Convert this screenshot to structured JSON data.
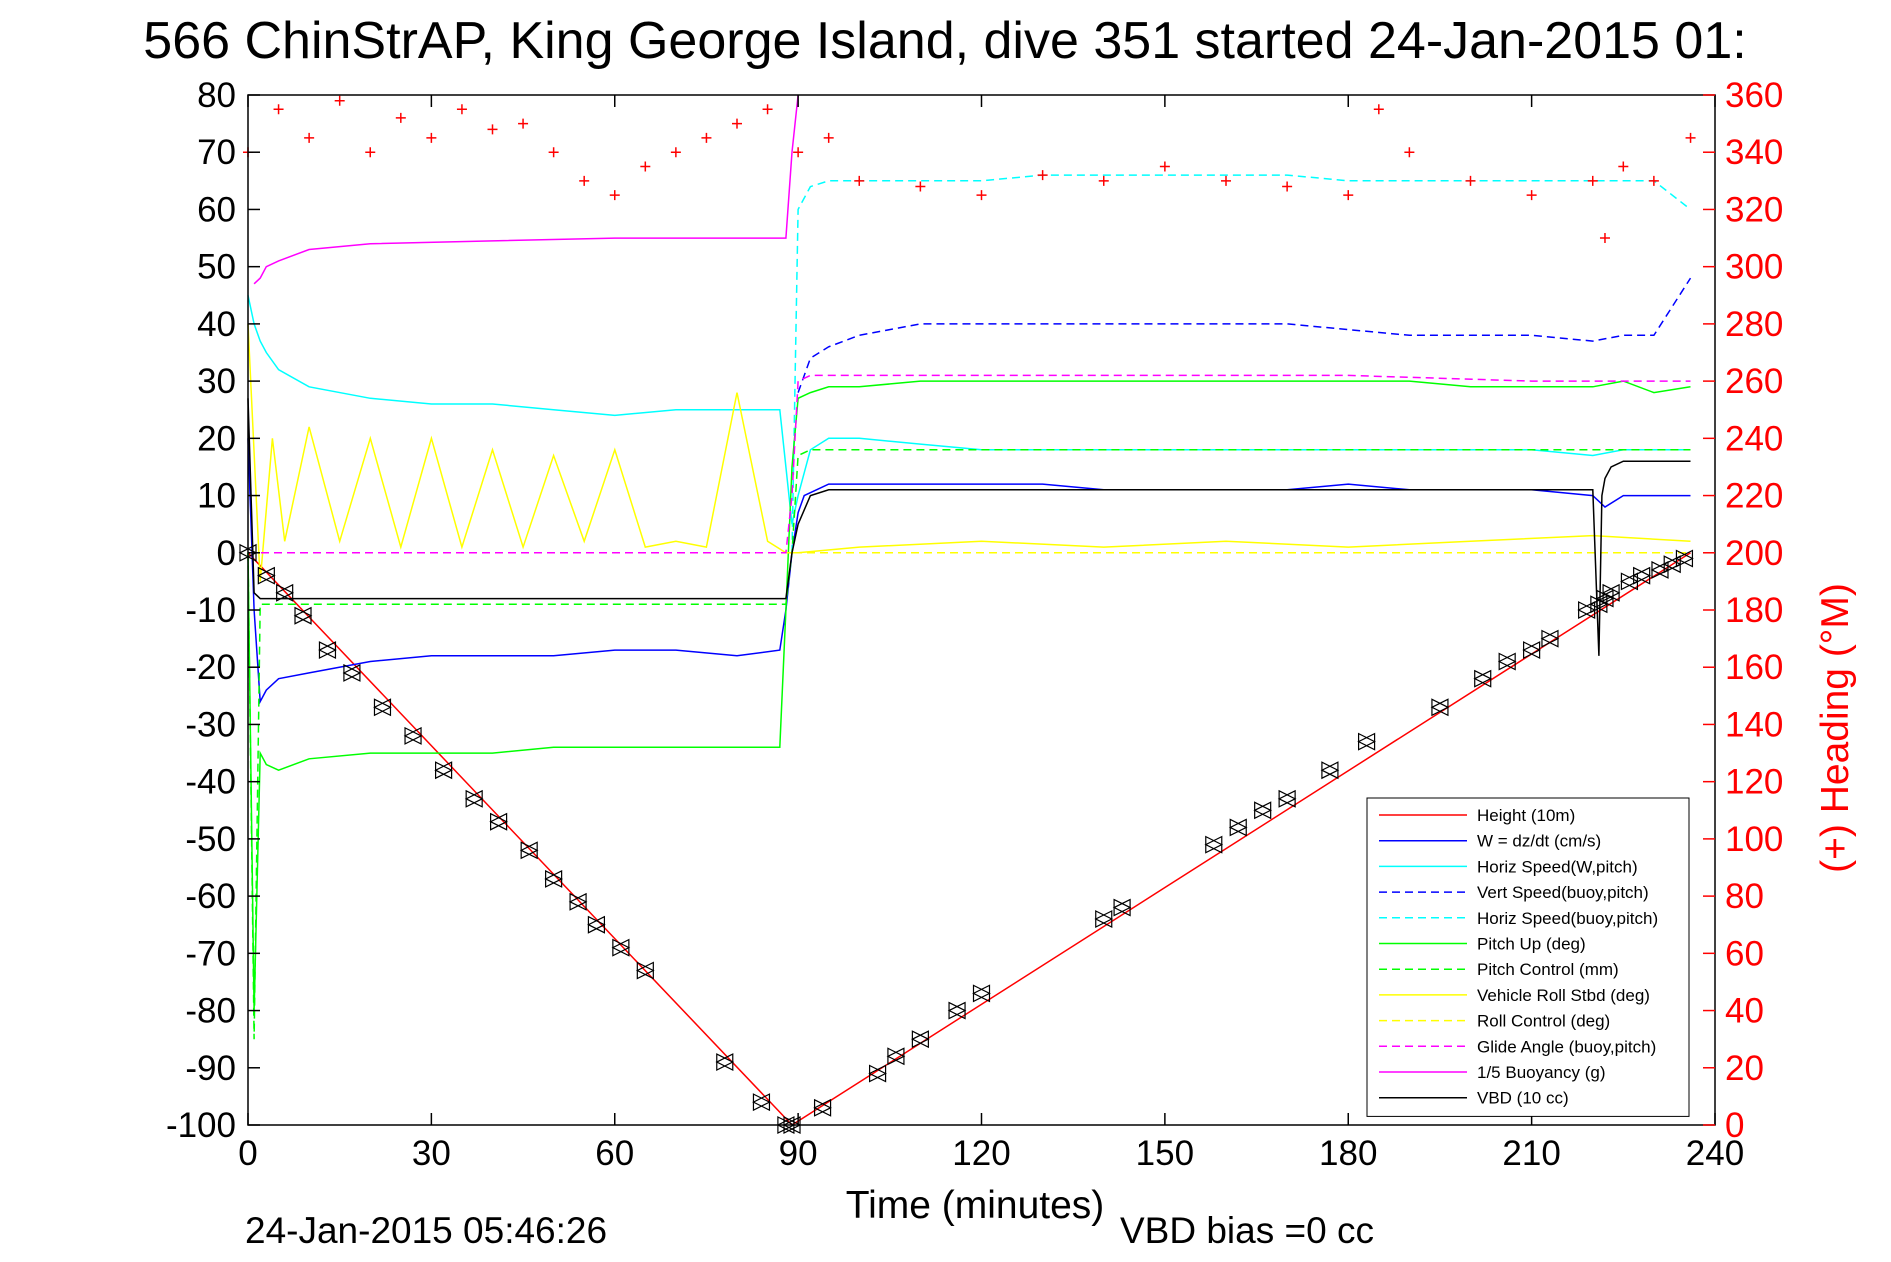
{
  "chart_data": {
    "type": "line",
    "title": "566 ChinStrAP, King George Island, dive 351 started 24-Jan-2015 01:",
    "xlabel": "Time (minutes)",
    "ylabel_right": "(+) Heading (°M)",
    "xlim": [
      0,
      240
    ],
    "ylim_left": [
      -100,
      80
    ],
    "ylim_right": [
      0,
      360
    ],
    "x_ticks": [
      "0",
      "30",
      "60",
      "90",
      "120",
      "150",
      "180",
      "210",
      "240"
    ],
    "y_ticks_left": [
      "80",
      "70",
      "60",
      "50",
      "40",
      "30",
      "20",
      "10",
      "0",
      "-10",
      "-20",
      "-30",
      "-40",
      "-50",
      "-60",
      "-70",
      "-80",
      "-90",
      "-100"
    ],
    "y_ticks_right": [
      "360",
      "340",
      "320",
      "300",
      "280",
      "260",
      "240",
      "220",
      "200",
      "180",
      "160",
      "140",
      "120",
      "100",
      "80",
      "60",
      "40",
      "20",
      "0"
    ],
    "grid": false,
    "legend_position": "bottom-right",
    "footer_left": "24-Jan-2015 05:46:26",
    "footer_right": "VBD bias =0 cc",
    "series": [
      {
        "name": "Height (10m)",
        "color": "#ff0000",
        "style": "solid",
        "x": [
          0,
          89,
          236
        ],
        "y": [
          0,
          -100,
          0
        ]
      },
      {
        "name": "W = dz/dt (cm/s)",
        "color": "#0000ff",
        "style": "solid",
        "x": [
          0,
          1,
          2,
          3,
          5,
          10,
          20,
          30,
          40,
          50,
          60,
          70,
          80,
          87,
          88,
          89,
          90,
          91,
          93,
          95,
          100,
          110,
          120,
          130,
          140,
          150,
          160,
          170,
          180,
          190,
          200,
          210,
          220,
          222,
          225,
          230,
          236
        ],
        "y": [
          20,
          -10,
          -26,
          -24,
          -22,
          -21,
          -19,
          -18,
          -18,
          -18,
          -17,
          -17,
          -18,
          -17,
          -10,
          0,
          7,
          10,
          11,
          12,
          12,
          12,
          12,
          12,
          11,
          11,
          11,
          11,
          12,
          11,
          11,
          11,
          10,
          8,
          10,
          10,
          10
        ]
      },
      {
        "name": "Horiz Speed(W,pitch)",
        "color": "#00ffff",
        "style": "solid",
        "x": [
          0,
          1,
          2,
          3,
          5,
          10,
          20,
          30,
          40,
          50,
          60,
          70,
          80,
          87,
          88,
          89,
          90,
          92,
          95,
          100,
          110,
          120,
          130,
          140,
          150,
          160,
          170,
          180,
          190,
          200,
          210,
          220,
          225,
          230,
          236
        ],
        "y": [
          45,
          40,
          37,
          35,
          32,
          29,
          27,
          26,
          26,
          25,
          24,
          25,
          25,
          25,
          15,
          5,
          10,
          18,
          20,
          20,
          19,
          18,
          18,
          18,
          18,
          18,
          18,
          18,
          18,
          18,
          18,
          17,
          18,
          18,
          18
        ]
      },
      {
        "name": "Vert Speed(buoy,pitch)",
        "color": "#0000ff",
        "style": "dashed",
        "x": [
          90,
          92,
          95,
          100,
          110,
          120,
          130,
          140,
          150,
          160,
          170,
          180,
          190,
          200,
          210,
          220,
          225,
          230,
          236
        ],
        "y": [
          28,
          34,
          36,
          38,
          40,
          40,
          40,
          40,
          40,
          40,
          40,
          39,
          38,
          38,
          38,
          37,
          38,
          38,
          48
        ]
      },
      {
        "name": "Horiz Speed(buoy,pitch)",
        "color": "#00ffff",
        "style": "dashed",
        "x": [
          89,
          90,
          92,
          95,
          100,
          110,
          120,
          130,
          140,
          150,
          160,
          170,
          180,
          190,
          200,
          210,
          220,
          225,
          230,
          236
        ],
        "y": [
          0,
          60,
          64,
          65,
          65,
          65,
          65,
          66,
          66,
          66,
          66,
          66,
          65,
          65,
          65,
          65,
          65,
          65,
          65,
          60
        ]
      },
      {
        "name": "Pitch Up (deg)",
        "color": "#00ff00",
        "style": "solid",
        "x": [
          0,
          1,
          2,
          3,
          5,
          10,
          20,
          30,
          40,
          50,
          60,
          70,
          80,
          87,
          88,
          89,
          90,
          92,
          95,
          100,
          110,
          120,
          130,
          140,
          150,
          160,
          170,
          180,
          190,
          200,
          210,
          220,
          225,
          230,
          236
        ],
        "y": [
          0,
          -80,
          -35,
          -37,
          -38,
          -36,
          -35,
          -35,
          -35,
          -34,
          -34,
          -34,
          -34,
          -34,
          -10,
          15,
          27,
          28,
          29,
          29,
          30,
          30,
          30,
          30,
          30,
          30,
          30,
          30,
          30,
          29,
          29,
          29,
          30,
          28,
          29
        ]
      },
      {
        "name": "Pitch Control (mm)",
        "color": "#00ff00",
        "style": "dashed",
        "x": [
          0,
          1,
          2,
          4,
          10,
          30,
          60,
          88,
          89,
          90,
          92,
          100,
          130,
          160,
          190,
          220,
          236
        ],
        "y": [
          0,
          -85,
          -9,
          -9,
          -9,
          -9,
          -9,
          -9,
          0,
          17,
          18,
          18,
          18,
          18,
          18,
          18,
          18
        ]
      },
      {
        "name": "Vehicle Roll Stbd (deg)",
        "color": "#ffff00",
        "style": "solid",
        "x": [
          0,
          2,
          4,
          6,
          10,
          15,
          20,
          25,
          30,
          35,
          40,
          45,
          50,
          55,
          60,
          65,
          70,
          75,
          80,
          85,
          88,
          90,
          100,
          120,
          140,
          160,
          180,
          200,
          220,
          236
        ],
        "y": [
          40,
          -5,
          20,
          2,
          22,
          2,
          20,
          1,
          20,
          1,
          18,
          1,
          17,
          2,
          18,
          1,
          2,
          1,
          28,
          2,
          0,
          0,
          1,
          2,
          1,
          2,
          1,
          2,
          3,
          2
        ]
      },
      {
        "name": "Roll Control (deg)",
        "color": "#ffff00",
        "style": "dashed",
        "x": [
          0,
          3,
          10,
          30,
          60,
          90,
          120,
          150,
          180,
          210,
          236
        ],
        "y": [
          0,
          0,
          0,
          0,
          0,
          0,
          0,
          0,
          0,
          0,
          0
        ]
      },
      {
        "name": "Glide Angle (buoy,pitch)",
        "color": "#ff00ff",
        "style": "dashed",
        "x": [
          0,
          30,
          60,
          88,
          89,
          90,
          92,
          95,
          100,
          120,
          150,
          180,
          210,
          220,
          236
        ],
        "y": [
          0,
          0,
          0,
          0,
          10,
          30,
          31,
          31,
          31,
          31,
          31,
          31,
          30,
          30,
          30
        ]
      },
      {
        "name": "1/5 Buoyancy (g)",
        "color": "#ff00ff",
        "style": "solid",
        "x": [
          1,
          2,
          3,
          5,
          10,
          20,
          40,
          60,
          80,
          88,
          89,
          90
        ],
        "y": [
          47,
          48,
          50,
          51,
          53,
          54,
          54.5,
          55,
          55,
          55,
          70,
          80
        ]
      },
      {
        "name": "VBD (10 cc)",
        "color": "#000000",
        "style": "solid",
        "x": [
          0,
          1,
          2,
          4,
          10,
          30,
          60,
          88,
          89,
          90,
          92,
          95,
          100,
          130,
          160,
          190,
          220,
          221,
          221.5,
          222,
          223,
          225,
          236
        ],
        "y": [
          27,
          -7,
          -8,
          -8,
          -8,
          -8,
          -8,
          -8,
          0,
          5,
          10,
          11,
          11,
          11,
          11,
          11,
          11,
          -18,
          10,
          13,
          15,
          16,
          16
        ]
      },
      {
        "name": "",
        "color": "#ff0000",
        "style": "markers",
        "axis": "right",
        "x": [
          0,
          5,
          10,
          15,
          20,
          25,
          30,
          35,
          40,
          45,
          50,
          55,
          60,
          65,
          70,
          75,
          80,
          85,
          90,
          95,
          100,
          110,
          120,
          130,
          140,
          150,
          160,
          170,
          180,
          185,
          190,
          200,
          210,
          220,
          222,
          225,
          230,
          236
        ],
        "y": [
          340,
          355,
          345,
          358,
          340,
          352,
          345,
          355,
          348,
          350,
          340,
          330,
          325,
          335,
          340,
          345,
          350,
          355,
          340,
          345,
          330,
          328,
          325,
          332,
          330,
          335,
          330,
          328,
          325,
          355,
          340,
          330,
          325,
          330,
          310,
          335,
          330,
          345
        ]
      }
    ],
    "markers": {
      "shape": "triangle",
      "x": [
        0,
        3,
        6,
        9,
        13,
        17,
        22,
        27,
        32,
        37,
        41,
        46,
        50,
        54,
        57,
        61,
        65,
        78,
        84,
        88,
        89,
        94,
        103,
        106,
        110,
        116,
        120,
        140,
        143,
        158,
        162,
        166,
        170,
        177,
        183,
        195,
        202,
        206,
        210,
        213,
        219,
        221,
        222,
        223,
        226,
        228,
        231,
        233,
        235
      ],
      "y": [
        0,
        -4,
        -7,
        -11,
        -17,
        -21,
        -27,
        -32,
        -38,
        -43,
        -47,
        -52,
        -57,
        -61,
        -65,
        -69,
        -73,
        -89,
        -96,
        -100,
        -100,
        -97,
        -91,
        -88,
        -85,
        -80,
        -77,
        -64,
        -62,
        -51,
        -48,
        -45,
        -43,
        -38,
        -33,
        -27,
        -22,
        -19,
        -17,
        -15,
        -10,
        -9,
        -8,
        -7,
        -5,
        -4,
        -3,
        -2,
        -1
      ]
    }
  }
}
